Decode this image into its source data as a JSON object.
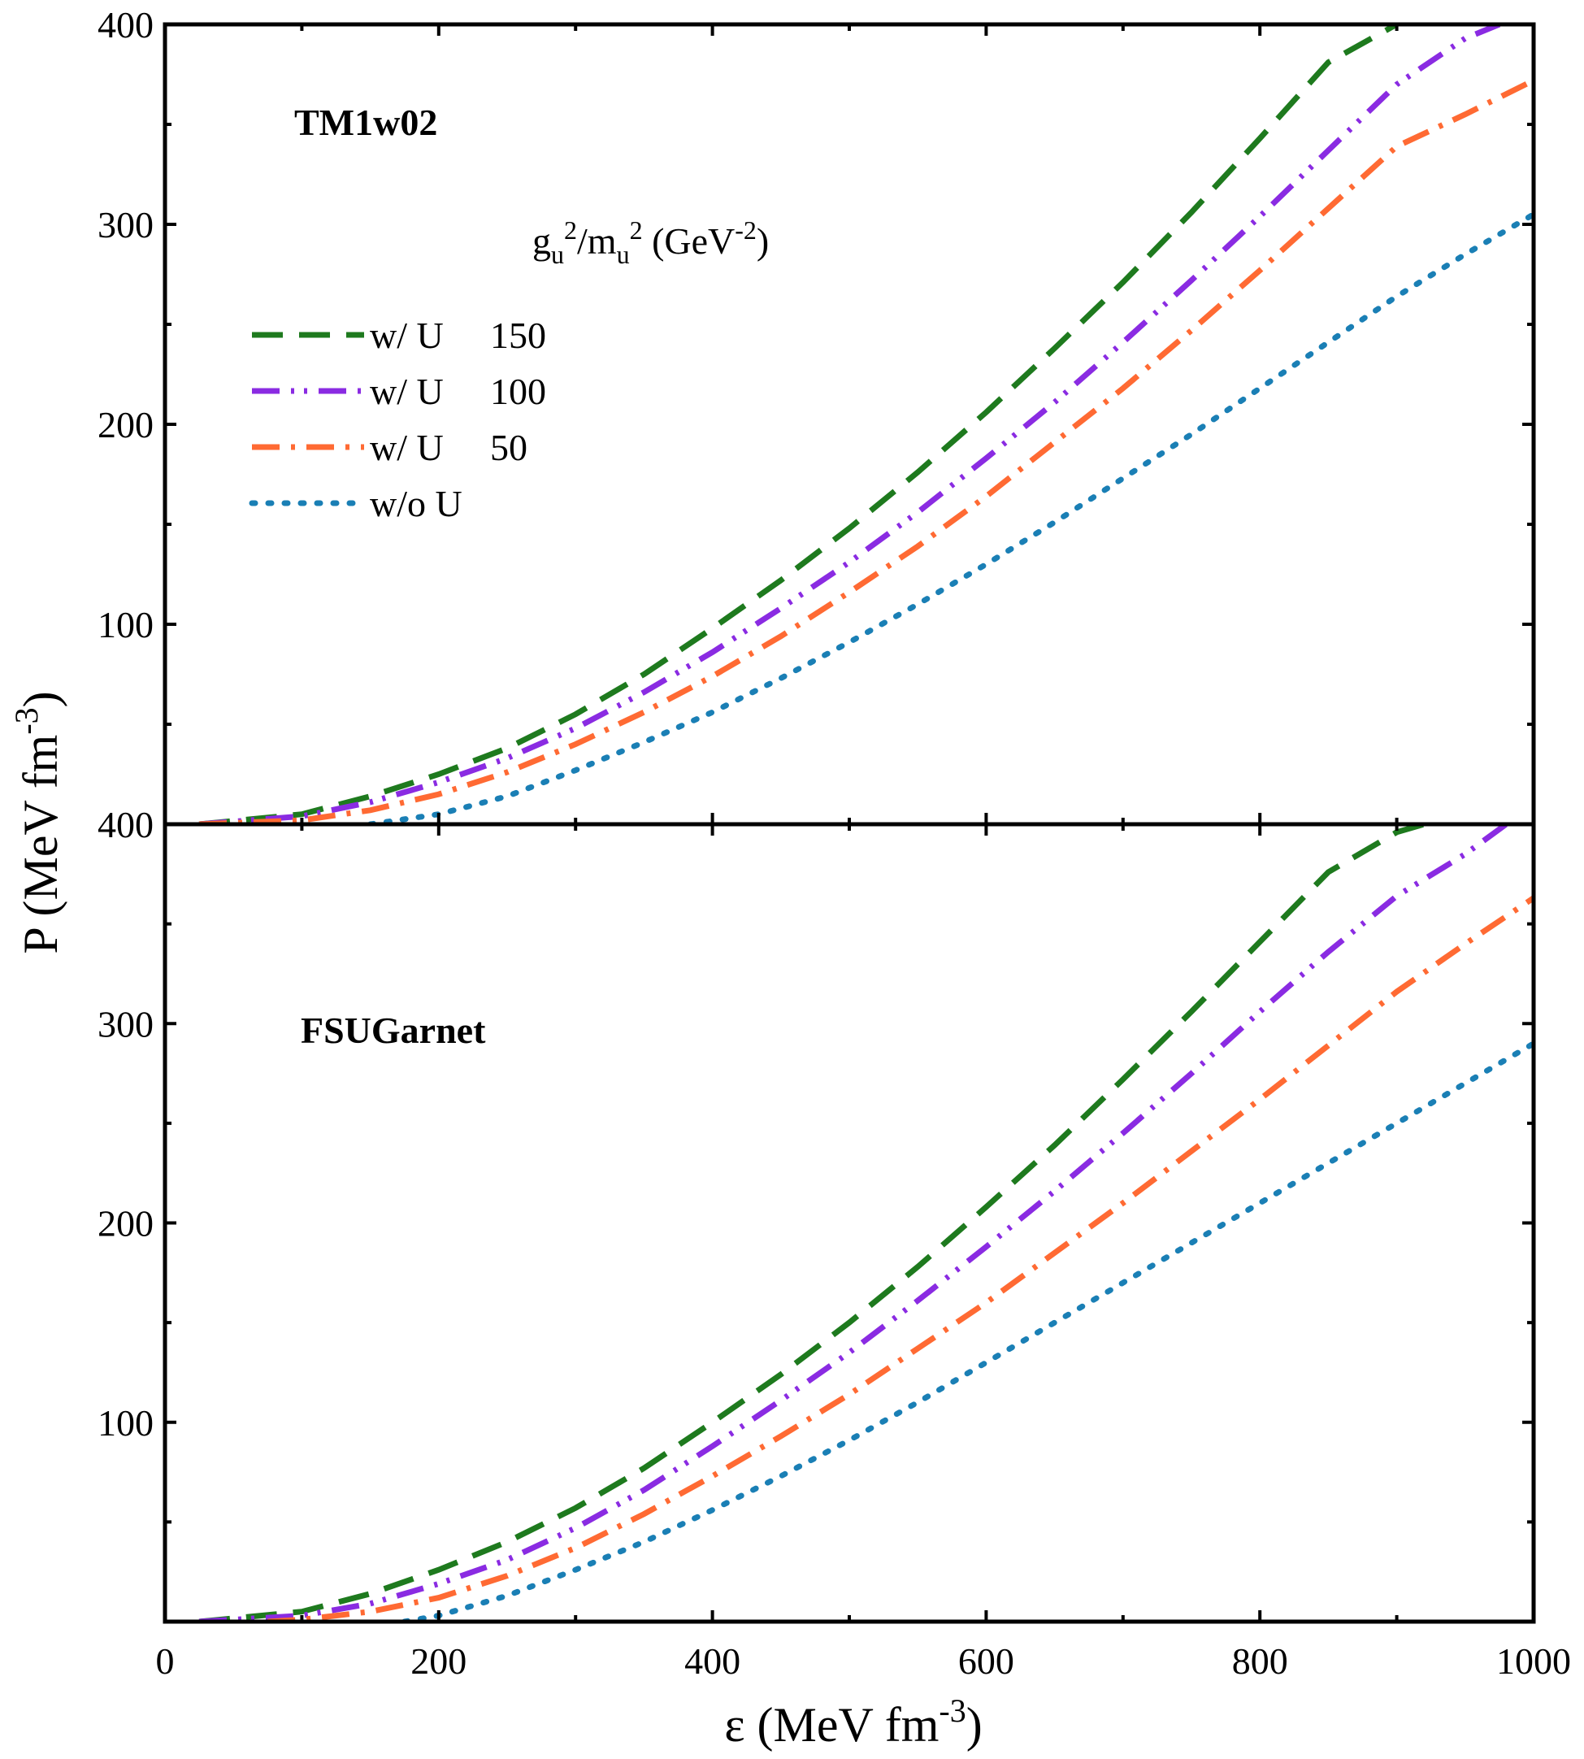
{
  "chart_data": {
    "type": "line",
    "xlabel": {
      "main": "ε (MeV fm",
      "sup": "-3",
      "close": ")"
    },
    "ylabel": {
      "main": "P (MeV fm",
      "sup": "-3",
      "close": ")"
    },
    "xlim": [
      0,
      1000
    ],
    "ylim": [
      0,
      400
    ],
    "x_ticks": [
      "0",
      "200",
      "400",
      "600",
      "800",
      "1000"
    ],
    "y_ticks_top": [
      "100",
      "200",
      "300",
      "400"
    ],
    "y_ticks_bottom": [
      "100",
      "200",
      "300",
      "400"
    ],
    "legend": {
      "title": {
        "g": "g",
        "g_sub": "u",
        "g_sup": "2",
        "slash_m": "/m",
        "m_sub": "u",
        "m_sup": "2",
        "unit_open": " (GeV",
        "unit_sup": "-2",
        "unit_close": ")"
      },
      "placement": "top-left",
      "entries": [
        {
          "label": "w/ U",
          "value": "150",
          "color": "#1e7a1e",
          "style": "dash"
        },
        {
          "label": "w/ U",
          "value": "100",
          "color": "#8a2be2",
          "style": "dash-dot-dot"
        },
        {
          "label": "w/ U",
          "value": "50",
          "color": "#ff6a33",
          "style": "dash-dot"
        },
        {
          "label": "w/o U",
          "value": "",
          "color": "#1a7fb5",
          "style": "dot"
        }
      ]
    },
    "panels": [
      {
        "label": "TM1w02",
        "series": [
          {
            "name": "w/ U 150",
            "color": "#1e7a1e",
            "style": "dash",
            "x": [
              25,
              100,
              150,
              200,
              250,
              300,
              350,
              400,
              450,
              500,
              550,
              600,
              650,
              700,
              750,
              800,
              850,
              900
            ],
            "y": [
              0,
              5,
              14,
              25,
              38,
              55,
              75,
              98,
              122,
              148,
              176,
              206,
              238,
              271,
              306,
              343,
              381,
              400
            ]
          },
          {
            "name": "w/ U 100",
            "color": "#8a2be2",
            "style": "dash-dot-dot",
            "x": [
              25,
              100,
              150,
              200,
              250,
              300,
              350,
              400,
              450,
              500,
              550,
              600,
              650,
              700,
              750,
              800,
              850,
              900,
              950,
              975
            ],
            "y": [
              0,
              4,
              11,
              21,
              33,
              48,
              66,
              86,
              108,
              131,
              156,
              183,
              211,
              241,
              272,
              304,
              337,
              370,
              393,
              400
            ]
          },
          {
            "name": "w/ U 50",
            "color": "#ff6a33",
            "style": "dash-dot",
            "x": [
              25,
              100,
              150,
              200,
              250,
              300,
              350,
              400,
              450,
              500,
              550,
              600,
              650,
              700,
              750,
              800,
              850,
              900,
              950,
              1000
            ],
            "y": [
              0,
              2,
              7,
              15,
              26,
              40,
              56,
              74,
              94,
              116,
              139,
              164,
              191,
              218,
              247,
              277,
              308,
              339,
              355,
              372
            ]
          },
          {
            "name": "w/o U",
            "color": "#1a7fb5",
            "style": "dot",
            "x": [
              150,
              200,
              250,
              300,
              350,
              400,
              450,
              500,
              550,
              600,
              650,
              700,
              750,
              800,
              850,
              900,
              950,
              1000
            ],
            "y": [
              0,
              5,
              14,
              27,
              41,
              56,
              73,
              91,
              110,
              130,
              151,
              173,
              195,
              218,
              241,
              264,
              285,
              305
            ]
          }
        ]
      },
      {
        "label": "FSUGarnet",
        "series": [
          {
            "name": "w/ U 150",
            "color": "#1e7a1e",
            "style": "dash",
            "x": [
              25,
              100,
              150,
              200,
              250,
              300,
              350,
              400,
              450,
              500,
              550,
              600,
              650,
              700,
              750,
              800,
              850,
              900,
              920
            ],
            "y": [
              0,
              5,
              14,
              26,
              40,
              57,
              77,
              100,
              124,
              150,
              178,
              208,
              239,
              272,
              306,
              341,
              376,
              396,
              400
            ]
          },
          {
            "name": "w/ U 100",
            "color": "#8a2be2",
            "style": "dash-dot-dot",
            "x": [
              25,
              100,
              150,
              200,
              250,
              300,
              350,
              400,
              450,
              500,
              550,
              600,
              650,
              700,
              750,
              800,
              850,
              900,
              950,
              980
            ],
            "y": [
              0,
              3,
              9,
              19,
              31,
              47,
              66,
              88,
              111,
              135,
              161,
              188,
              216,
              245,
              275,
              306,
              336,
              364,
              385,
              400
            ]
          },
          {
            "name": "w/ U 50",
            "color": "#ff6a33",
            "style": "dash-dot",
            "x": [
              75,
              100,
              150,
              200,
              250,
              300,
              350,
              400,
              450,
              500,
              550,
              600,
              650,
              700,
              750,
              800,
              850,
              900,
              950,
              1000
            ],
            "y": [
              0,
              1,
              5,
              12,
              23,
              37,
              54,
              73,
              93,
              114,
              137,
              160,
              185,
              210,
              236,
              262,
              289,
              316,
              340,
              363
            ]
          },
          {
            "name": "w/o U",
            "color": "#1a7fb5",
            "style": "dot",
            "x": [
              175,
              200,
              250,
              300,
              350,
              400,
              450,
              500,
              550,
              600,
              650,
              700,
              750,
              800,
              850,
              900,
              950,
              1000
            ],
            "y": [
              0,
              3,
              13,
              26,
              40,
              56,
              73,
              91,
              110,
              130,
              150,
              170,
              190,
              210,
              230,
              250,
              270,
              290
            ]
          }
        ]
      }
    ]
  }
}
